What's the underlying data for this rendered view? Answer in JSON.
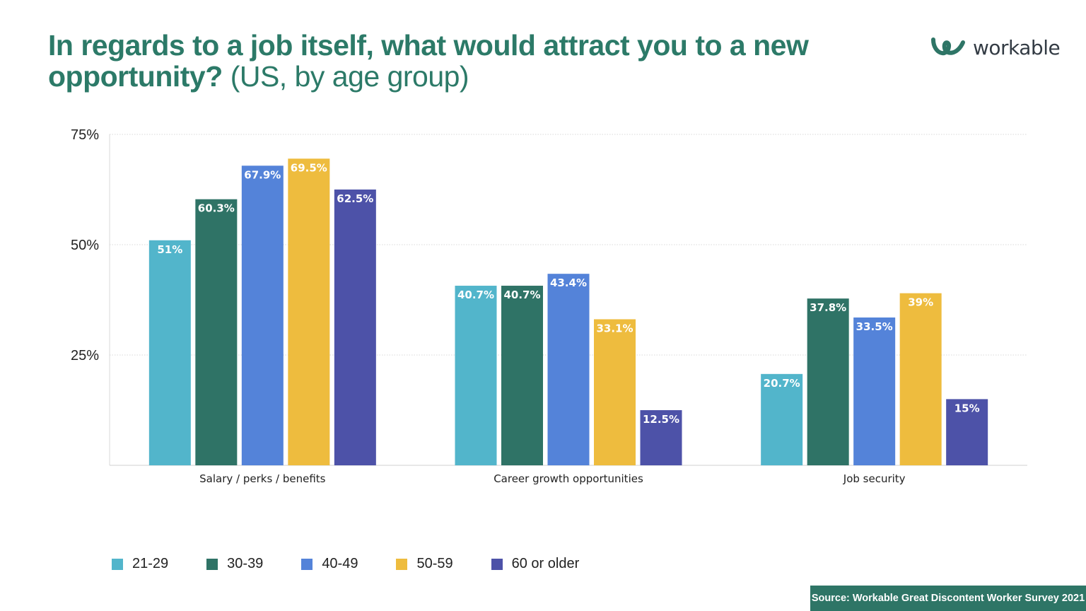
{
  "title": {
    "bold": "In regards to a job itself, what would attract you to a new opportunity?",
    "normal": "(US, by age group)"
  },
  "logo": {
    "text": "workable",
    "color": "#2e7566"
  },
  "source": "Source: Workable Great Discontent Worker Survey 2021",
  "chart_data": {
    "type": "bar",
    "title": "In regards to a job itself, what would attract you to a new opportunity? (US, by age group)",
    "categories": [
      "Salary / perks / benefits",
      "Career growth opportunities",
      "Job security"
    ],
    "series": [
      {
        "name": "21-29",
        "color": "#52b5cb",
        "values": [
          51,
          40.7,
          20.7
        ],
        "labels": [
          "51%",
          "40.7%",
          "20.7%"
        ]
      },
      {
        "name": "30-39",
        "color": "#2f7366",
        "values": [
          60.3,
          40.7,
          37.8
        ],
        "labels": [
          "60.3%",
          "40.7%",
          "37.8%"
        ]
      },
      {
        "name": "40-49",
        "color": "#5483d9",
        "values": [
          67.9,
          43.4,
          33.5
        ],
        "labels": [
          "67.9%",
          "43.4%",
          "33.5%"
        ]
      },
      {
        "name": "50-59",
        "color": "#eebc3e",
        "values": [
          69.5,
          33.1,
          39
        ],
        "labels": [
          "69.5%",
          "33.1%",
          "39%"
        ]
      },
      {
        "name": "60 or older",
        "color": "#4d52a8",
        "values": [
          62.5,
          12.5,
          15
        ],
        "labels": [
          "62.5%",
          "12.5%",
          "15%"
        ]
      }
    ],
    "yticks": [
      25,
      50,
      75
    ],
    "ytick_labels": [
      "25%",
      "50%",
      "75%"
    ],
    "ylim": [
      0,
      75
    ],
    "grid": true,
    "legend": "bottom-left"
  }
}
